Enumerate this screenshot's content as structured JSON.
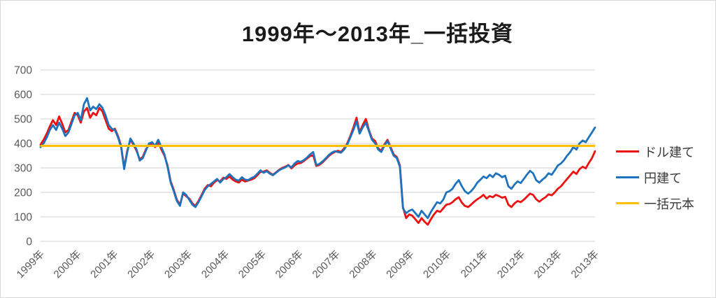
{
  "title": "1999年～2013年_一括投資",
  "chart_data": {
    "type": "line",
    "title": "1999年～2013年_一括投資",
    "x_unit": "monthly, 1999-01 to 2013-12",
    "x_tick_labels": [
      "1999年",
      "2000年",
      "2001年",
      "2002年",
      "2003年",
      "2004年",
      "2005年",
      "2006年",
      "2007年",
      "2008年",
      "2009年",
      "2010年",
      "2011年",
      "2012年",
      "2013年",
      "2013年"
    ],
    "y_ticks": [
      0,
      100,
      200,
      300,
      400,
      500,
      600,
      700
    ],
    "ylim": [
      0,
      700
    ],
    "grid": "horizontal",
    "legend_position": "right",
    "colors": {
      "grid": "#d9d9d9",
      "axis_text": "#595959",
      "legend_text": "#3a3a3a",
      "title_text": "#1a1a1a"
    },
    "series": [
      {
        "name": "ドル建て",
        "kind": "line",
        "color": "#ee1111",
        "values": [
          395,
          415,
          440,
          470,
          495,
          475,
          510,
          480,
          445,
          455,
          490,
          525,
          515,
          485,
          530,
          545,
          505,
          525,
          515,
          545,
          530,
          495,
          460,
          450,
          460,
          430,
          390,
          300,
          370,
          415,
          395,
          370,
          335,
          345,
          375,
          395,
          400,
          385,
          405,
          375,
          350,
          310,
          245,
          210,
          170,
          150,
          195,
          185,
          175,
          155,
          145,
          165,
          190,
          215,
          230,
          225,
          240,
          250,
          245,
          260,
          255,
          265,
          252,
          245,
          240,
          252,
          244,
          248,
          252,
          258,
          270,
          284,
          285,
          290,
          280,
          272,
          282,
          292,
          300,
          305,
          312,
          298,
          310,
          318,
          320,
          328,
          338,
          348,
          352,
          308,
          312,
          322,
          335,
          348,
          358,
          365,
          370,
          365,
          380,
          400,
          430,
          465,
          505,
          445,
          475,
          500,
          455,
          420,
          410,
          380,
          370,
          395,
          415,
          385,
          355,
          345,
          310,
          140,
          95,
          110,
          105,
          90,
          75,
          95,
          80,
          68,
          90,
          110,
          125,
          120,
          135,
          150,
          152,
          160,
          172,
          180,
          158,
          145,
          140,
          150,
          162,
          172,
          180,
          190,
          175,
          185,
          180,
          190,
          185,
          178,
          182,
          150,
          140,
          155,
          165,
          160,
          170,
          182,
          195,
          190,
          172,
          162,
          172,
          180,
          192,
          188,
          200,
          215,
          225,
          240,
          255,
          270,
          285,
          275,
          295,
          305,
          298,
          320,
          340,
          368
        ]
      },
      {
        "name": "円建て",
        "kind": "line",
        "color": "#1e73be",
        "values": [
          385,
          400,
          425,
          455,
          475,
          455,
          485,
          460,
          430,
          445,
          480,
          515,
          525,
          495,
          560,
          585,
          535,
          550,
          540,
          560,
          545,
          515,
          475,
          460,
          455,
          425,
          385,
          295,
          365,
          420,
          400,
          375,
          330,
          340,
          370,
          400,
          405,
          390,
          415,
          385,
          355,
          305,
          240,
          205,
          165,
          145,
          200,
          190,
          170,
          150,
          140,
          160,
          185,
          210,
          225,
          235,
          245,
          255,
          240,
          255,
          262,
          275,
          262,
          252,
          248,
          262,
          252,
          250,
          258,
          264,
          276,
          290,
          280,
          287,
          277,
          270,
          280,
          290,
          297,
          302,
          310,
          302,
          318,
          328,
          325,
          332,
          342,
          355,
          365,
          312,
          316,
          326,
          338,
          352,
          362,
          368,
          365,
          362,
          375,
          395,
          425,
          455,
          490,
          440,
          465,
          485,
          450,
          415,
          400,
          375,
          365,
          390,
          410,
          380,
          350,
          340,
          305,
          135,
          115,
          125,
          130,
          115,
          100,
          125,
          110,
          95,
          120,
          140,
          160,
          155,
          170,
          200,
          205,
          215,
          235,
          250,
          225,
          205,
          195,
          205,
          220,
          240,
          252,
          265,
          258,
          272,
          262,
          278,
          272,
          262,
          268,
          225,
          215,
          232,
          245,
          238,
          255,
          272,
          288,
          278,
          250,
          240,
          252,
          262,
          278,
          272,
          290,
          310,
          318,
          332,
          350,
          365,
          385,
          375,
          400,
          412,
          405,
          425,
          445,
          465
        ]
      },
      {
        "name": "一括元本",
        "kind": "constant-line",
        "color": "#ffc000",
        "value": 390
      }
    ]
  }
}
